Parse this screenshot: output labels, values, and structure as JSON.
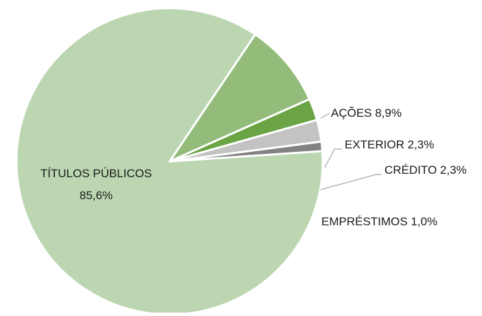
{
  "chart_data": {
    "type": "pie",
    "title": "",
    "slices": [
      {
        "label": "AÇÕES",
        "value_label": "8,9%",
        "value": 8.9,
        "color": "#93bc7b"
      },
      {
        "label": "EXTERIOR",
        "value_label": "2,3%",
        "value": 2.3,
        "color": "#6aa445"
      },
      {
        "label": "CRÉDITO",
        "value_label": "2,3%",
        "value": 2.3,
        "color": "#c3c3c3"
      },
      {
        "label": "EMPRÉSTIMOS",
        "value_label": "1,0%",
        "value": 1.0,
        "color": "#828282"
      },
      {
        "label": "TÍTULOS PÚBLICOS",
        "value_label": "85,6%",
        "value": 85.6,
        "color": "#bcd6b1"
      }
    ],
    "legend": "none",
    "slice_border_color": "#ffffff"
  }
}
